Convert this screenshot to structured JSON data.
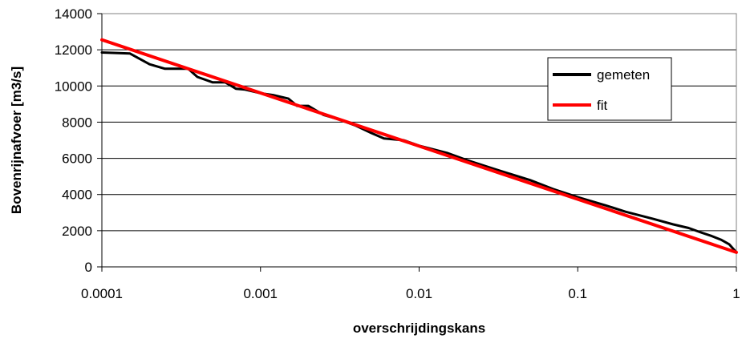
{
  "chart_data": {
    "type": "line",
    "title": "",
    "xlabel": "overschrijdingskans",
    "ylabel": "Bovenrijnafvoer [m3/s]",
    "xscale": "log",
    "xlim": [
      0.0001,
      1
    ],
    "ylim": [
      0,
      14000
    ],
    "xticks": [
      0.0001,
      0.001,
      0.01,
      0.1,
      1
    ],
    "xtick_labels": [
      "0.0001",
      "0.001",
      "0.01",
      "0.1",
      "1"
    ],
    "yticks": [
      0,
      2000,
      4000,
      6000,
      8000,
      10000,
      12000,
      14000
    ],
    "ytick_labels": [
      "0",
      "2000",
      "4000",
      "6000",
      "8000",
      "10000",
      "12000",
      "14000"
    ],
    "grid": "horizontal",
    "legend_position": "right",
    "series": [
      {
        "name": "gemeten",
        "color": "#000000",
        "x": [
          0.0001,
          0.00015,
          0.0002,
          0.00025,
          0.0003,
          0.00035,
          0.0004,
          0.0005,
          0.0006,
          0.0007,
          0.0008,
          0.001,
          0.0012,
          0.0015,
          0.0017,
          0.002,
          0.0025,
          0.003,
          0.004,
          0.005,
          0.006,
          0.008,
          0.01,
          0.015,
          0.02,
          0.03,
          0.05,
          0.07,
          0.1,
          0.15,
          0.2,
          0.3,
          0.4,
          0.5,
          0.6,
          0.7,
          0.8,
          0.9,
          1
        ],
        "y": [
          11850,
          11800,
          11200,
          10950,
          10950,
          10950,
          10500,
          10200,
          10200,
          9850,
          9800,
          9600,
          9500,
          9300,
          8900,
          8900,
          8400,
          8200,
          7800,
          7400,
          7100,
          7000,
          6700,
          6300,
          5900,
          5400,
          4800,
          4300,
          3850,
          3400,
          3050,
          2650,
          2350,
          2150,
          1900,
          1700,
          1500,
          1250,
          800
        ]
      },
      {
        "name": "fit",
        "color": "#ff0000",
        "x": [
          0.0001,
          1
        ],
        "y": [
          12550,
          800
        ]
      }
    ]
  }
}
